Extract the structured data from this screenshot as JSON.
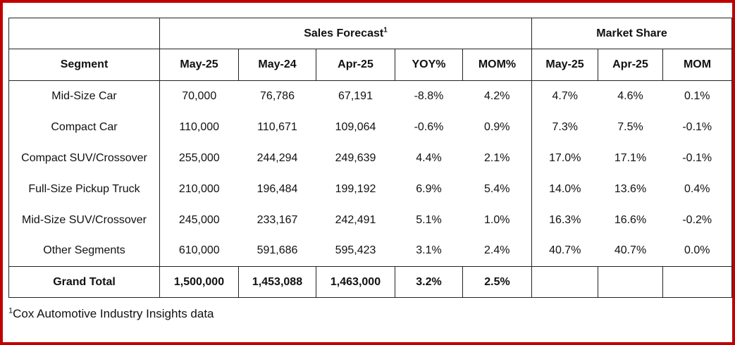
{
  "header": {
    "groups": {
      "sales_forecast": "Sales Forecast",
      "sales_forecast_sup": "1",
      "market_share": "Market Share"
    },
    "columns": [
      "Segment",
      "May-25",
      "May-24",
      "Apr-25",
      "YOY%",
      "MOM%",
      "May-25",
      "Apr-25",
      "MOM"
    ]
  },
  "rows": [
    [
      "Mid-Size Car",
      "70,000",
      "76,786",
      "67,191",
      "-8.8%",
      "4.2%",
      "4.7%",
      "4.6%",
      "0.1%"
    ],
    [
      "Compact Car",
      "110,000",
      "110,671",
      "109,064",
      "-0.6%",
      "0.9%",
      "7.3%",
      "7.5%",
      "-0.1%"
    ],
    [
      "Compact SUV/Crossover",
      "255,000",
      "244,294",
      "249,639",
      "4.4%",
      "2.1%",
      "17.0%",
      "17.1%",
      "-0.1%"
    ],
    [
      "Full-Size Pickup Truck",
      "210,000",
      "196,484",
      "199,192",
      "6.9%",
      "5.4%",
      "14.0%",
      "13.6%",
      "0.4%"
    ],
    [
      "Mid-Size SUV/Crossover",
      "245,000",
      "233,167",
      "242,491",
      "5.1%",
      "1.0%",
      "16.3%",
      "16.6%",
      "-0.2%"
    ],
    [
      "Other Segments",
      "610,000",
      "591,686",
      "595,423",
      "3.1%",
      "2.4%",
      "40.7%",
      "40.7%",
      "0.0%"
    ]
  ],
  "total": [
    "Grand Total",
    "1,500,000",
    "1,453,088",
    "1,463,000",
    "3.2%",
    "2.5%",
    "",
    "",
    ""
  ],
  "footnote": {
    "sup": "1",
    "text": "Cox Automotive Industry Insights data"
  },
  "colors": {
    "frame": "#c00000",
    "text": "#111111",
    "rule": "#222222"
  }
}
